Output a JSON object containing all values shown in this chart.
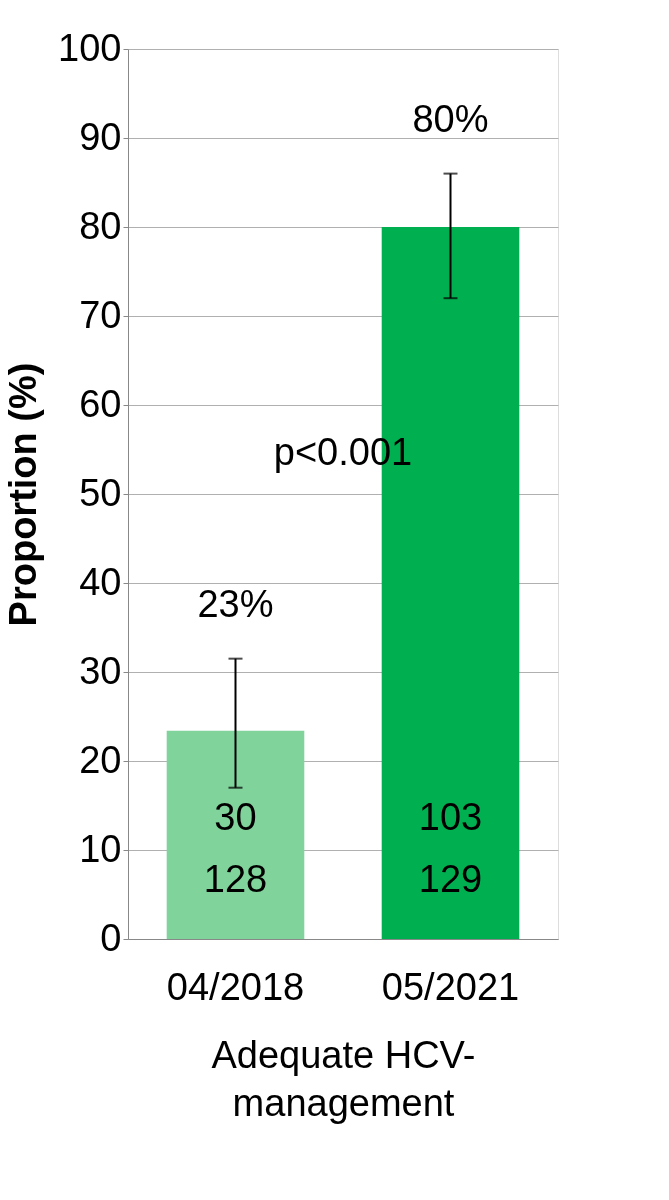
{
  "chart_data": {
    "type": "bar",
    "ylabel": "Proportion (%)",
    "xlabel": "Adequate HCV-management",
    "categories": [
      "04/2018",
      "05/2021"
    ],
    "values": [
      23.4,
      80.0
    ],
    "colors": [
      "#7fd39b",
      "#00b050"
    ],
    "errors": [
      [
        17,
        31.5
      ],
      [
        72,
        86
      ]
    ],
    "value_labels": [
      "23%",
      "80%"
    ],
    "ylim": [
      0,
      100
    ],
    "yticks": [
      0,
      10,
      20,
      30,
      40,
      50,
      60,
      70,
      80,
      90,
      100
    ],
    "grid": "y",
    "annotations": [
      "30",
      "128",
      "103",
      "129",
      "p<0.001"
    ]
  }
}
